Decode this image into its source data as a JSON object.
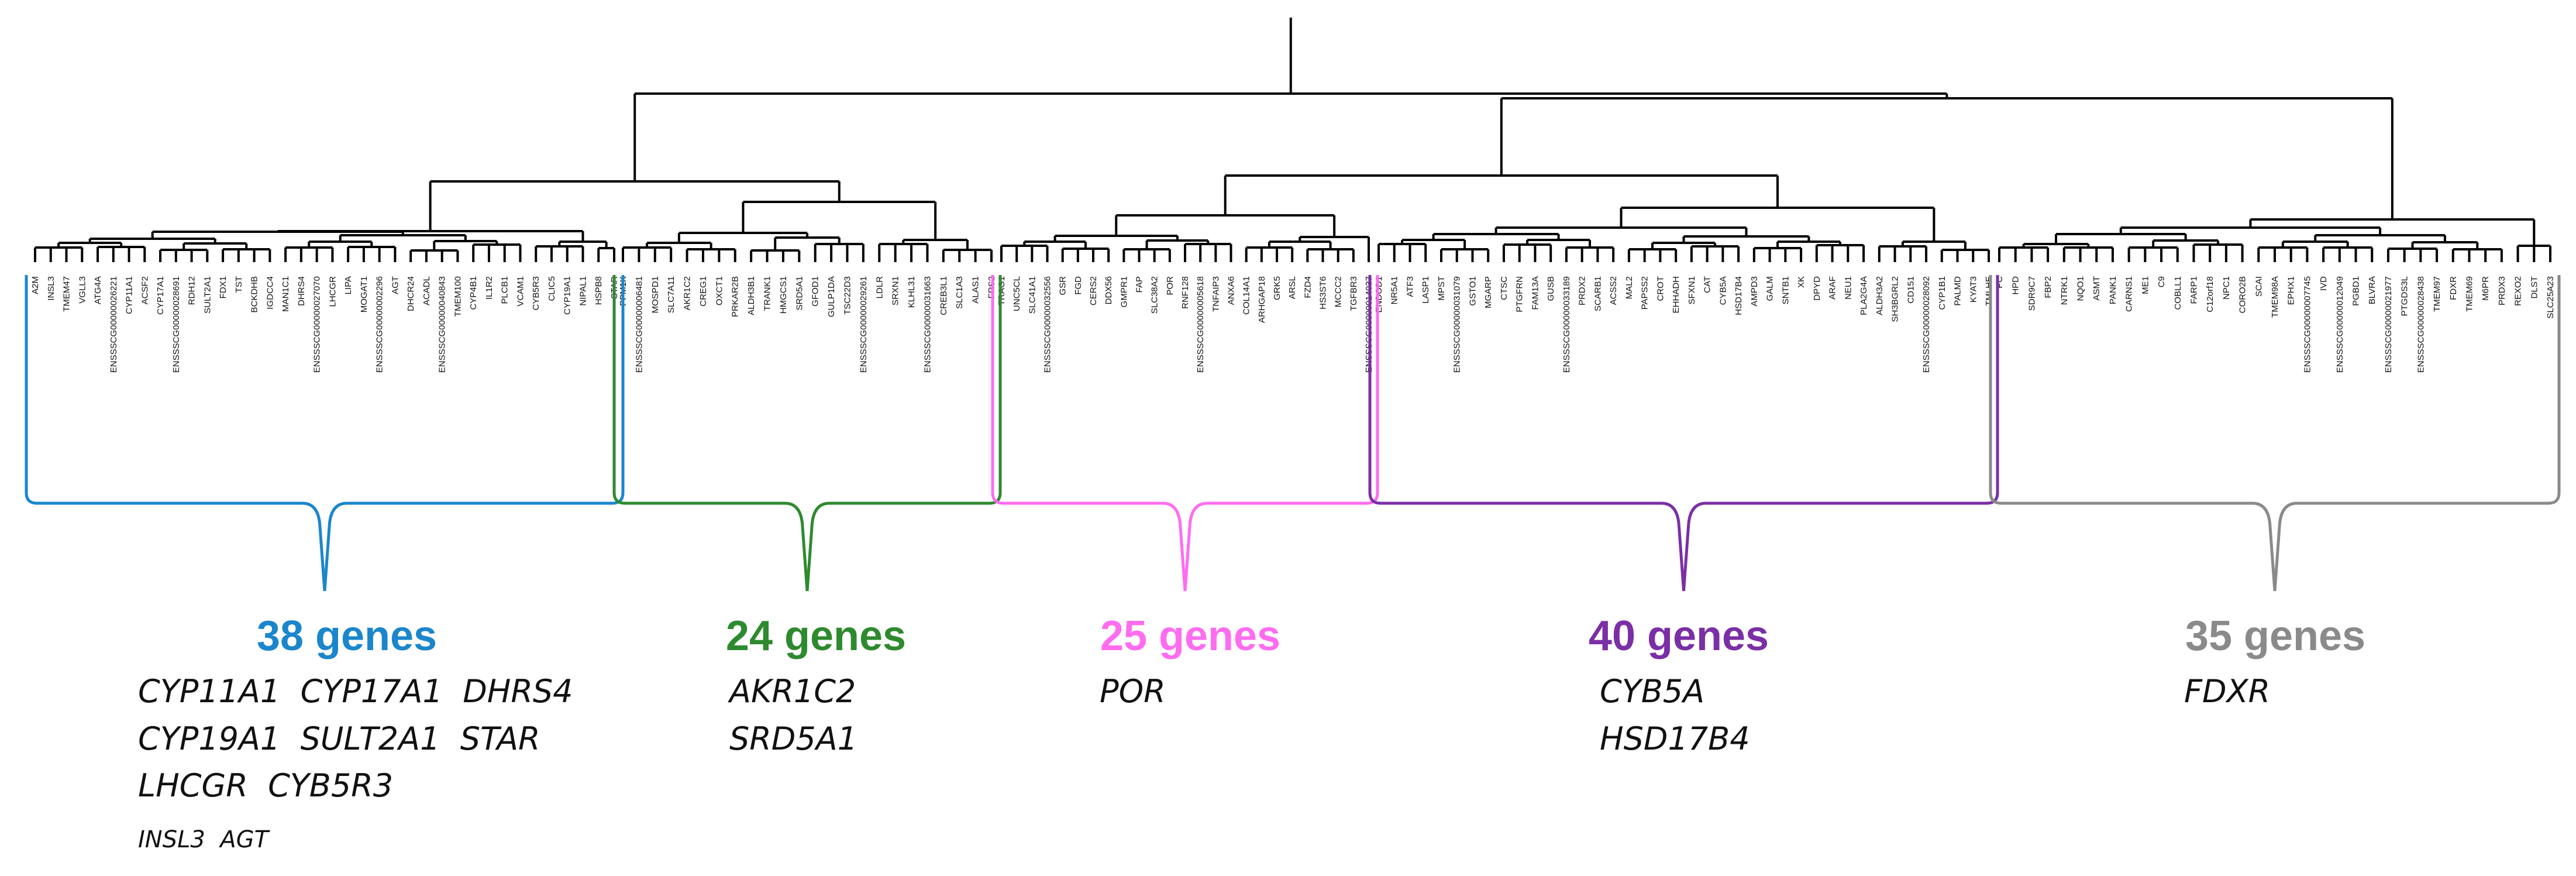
{
  "colors": {
    "tree": "#000000",
    "text": "#111111"
  },
  "clusters": [
    {
      "id": "c1",
      "count_label": "38 genes",
      "color": "#1a86cc",
      "key_gene_lines": [
        "CYP11A1  CYP17A1  DHRS4",
        "CYP19A1  SULT2A1  STAR",
        "LHCGR  CYB5R3"
      ],
      "minor_gene_lines": [
        "INSL3  AGT"
      ],
      "genes": [
        "A2M",
        "INSL3",
        "TMEM47",
        "VGLL3",
        "ATG4A",
        "ENSSSCG00000026221",
        "CYP11A1",
        "ACSF2",
        "CYP17A1",
        "ENSSSCG00000028691",
        "RDH12",
        "SULT2A1",
        "FDX1",
        "TST",
        "BCKDHB",
        "IGDCC4",
        "MAN1C1",
        "DHRS4",
        "ENSSSCG00000027070",
        "LHCGR",
        "LIPA",
        "MOGAT1",
        "ENSSSCG00000002296",
        "AGT",
        "DHCR24",
        "ACADL",
        "ENSSSCG00000040843",
        "TMEM100",
        "CYP4B1",
        "IL1R2",
        "PLCB1",
        "VCAM1",
        "CYB5R3",
        "CLIC5",
        "CYP19A1",
        "NIPAL1",
        "HSPB8",
        "STAR"
      ]
    },
    {
      "id": "c2",
      "count_label": "24 genes",
      "color": "#2e8a2e",
      "key_gene_lines": [
        "AKR1C2",
        "SRD5A1"
      ],
      "minor_gene_lines": [],
      "genes": [
        "PPM1K",
        "ENSSSCG00000006481",
        "MOSPD1",
        "SLC7A11",
        "AKR1C2",
        "CREG1",
        "OXCT1",
        "PRKAR2B",
        "ALDH3B1",
        "TRANK1",
        "HMGCS1",
        "SRD5A1",
        "GFOD1",
        "GULP1DA",
        "TSC22D3",
        "ENSSSCG00000029261",
        "LDLR",
        "SRXN1",
        "KLHL31",
        "ENSSSCG00000031663",
        "CREB3L1",
        "SLC1A3",
        "ALAS1",
        "FRS2"
      ]
    },
    {
      "id": "c3",
      "count_label": "25 genes",
      "color": "#ff6cf0",
      "key_gene_lines": [
        "POR"
      ],
      "minor_gene_lines": [],
      "genes": [
        "TRAG1",
        "UNC5CL",
        "SLC41A1",
        "ENSSSCG00000032556",
        "GSR",
        "FGD",
        "CERS2",
        "DDX56",
        "GMPR1",
        "FAP",
        "SLC38A2",
        "POR",
        "RNF128",
        "ENSSSCG00000005618",
        "TNFAIP3",
        "ANXA6",
        "COL14A1",
        "ARHGAP18",
        "GRK5",
        "ARSL",
        "FZD4",
        "HS3ST6",
        "MCCC2",
        "TGFBR3",
        "ENSSSCG00000014037"
      ]
    },
    {
      "id": "c4",
      "count_label": "40 genes",
      "color": "#7b2fa6",
      "key_gene_lines": [
        "CYB5A",
        "HSD17B4"
      ],
      "minor_gene_lines": [],
      "genes": [
        "ENDOD1",
        "NR5A1",
        "ATF3",
        "LASP1",
        "MPST",
        "ENSSSCG00000031079",
        "GSTO1",
        "MGARP",
        "CTSC",
        "PTGFRN",
        "FAM13A",
        "GUSB",
        "ENSSSCG00000033189",
        "PRDX2",
        "SCARB1",
        "ACSS2",
        "MAL2",
        "PAPSS2",
        "CROT",
        "EHHADH",
        "SFXN1",
        "CAT",
        "CYB5A",
        "HSD17B4",
        "AMPD3",
        "GALM",
        "SNTB1",
        "XK",
        "DPYD",
        "ARAF",
        "NEU1",
        "PLA2G4A",
        "ALDH3A2",
        "SH3BGRL2",
        "CD151",
        "ENSSSCG00000028092",
        "CYP1B1",
        "PALMD",
        "KYAT3",
        "TMLHE"
      ]
    },
    {
      "id": "c5",
      "count_label": "35 genes",
      "color": "#8a8a8a",
      "key_gene_lines": [
        "FDXR"
      ],
      "minor_gene_lines": [],
      "genes": [
        "PC",
        "HPD",
        "SDR9C7",
        "FBP2",
        "NTRK1",
        "NQO1",
        "ASMT",
        "PANK1",
        "CARNS1",
        "ME1",
        "C9",
        "COBLL1",
        "FARP1",
        "C12orf18",
        "NPC1",
        "CORO2B",
        "SCAI",
        "TMEM98A",
        "EPHX1",
        "ENSSSCG00000007745",
        "IVD",
        "ENSSSCG00000012049",
        "PGBD1",
        "BLVRA",
        "ENSSSCG00000021977",
        "PTGDS3L",
        "ENSSSCG00000028438",
        "TMEM97",
        "FDXR",
        "TMEM69",
        "M6PR",
        "PRDX3",
        "REXO2",
        "DLST",
        "SLC25A23"
      ]
    }
  ]
}
